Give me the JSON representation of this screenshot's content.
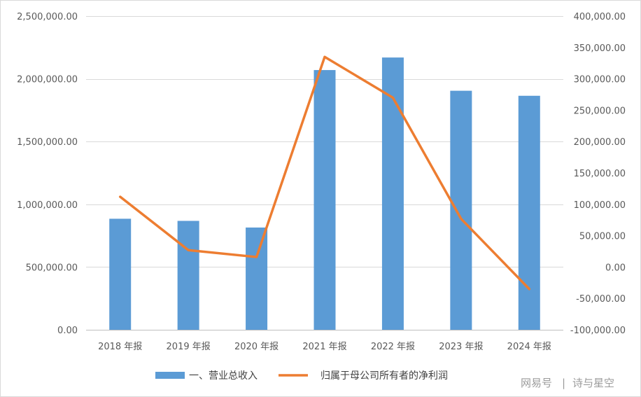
{
  "chart_data": {
    "type": "bar",
    "categories": [
      "2018 年报",
      "2019 年报",
      "2020 年报",
      "2021 年报",
      "2022 年报",
      "2023 年报",
      "2024 年报"
    ],
    "series": [
      {
        "name": "一、营业总收入",
        "type": "bar",
        "axis": "left",
        "color": "#5b9bd5",
        "values": [
          885000,
          868000,
          815000,
          2070000,
          2170000,
          1905000,
          1865000
        ]
      },
      {
        "name": "归属于母公司所有者的净利润",
        "type": "line",
        "axis": "right",
        "color": "#ed7d31",
        "values": [
          112000,
          27000,
          16000,
          335000,
          270000,
          77000,
          -35000
        ]
      }
    ],
    "left_axis": {
      "ylim": [
        0,
        2500000
      ],
      "ticks": [
        "0.00",
        "500,000.00",
        "1,000,000.00",
        "1,500,000.00",
        "2,000,000.00",
        "2,500,000.00"
      ]
    },
    "right_axis": {
      "ylim": [
        -100000,
        400000
      ],
      "ticks": [
        "-100,000.00",
        "-50,000.00",
        "0.00",
        "50,000.00",
        "100,000.00",
        "150,000.00",
        "200,000.00",
        "250,000.00",
        "300,000.00",
        "350,000.00",
        "400,000.00"
      ]
    },
    "grid": true,
    "legend_position": "bottom-center"
  },
  "watermark": {
    "left": "网易号",
    "right": "诗与星空"
  }
}
